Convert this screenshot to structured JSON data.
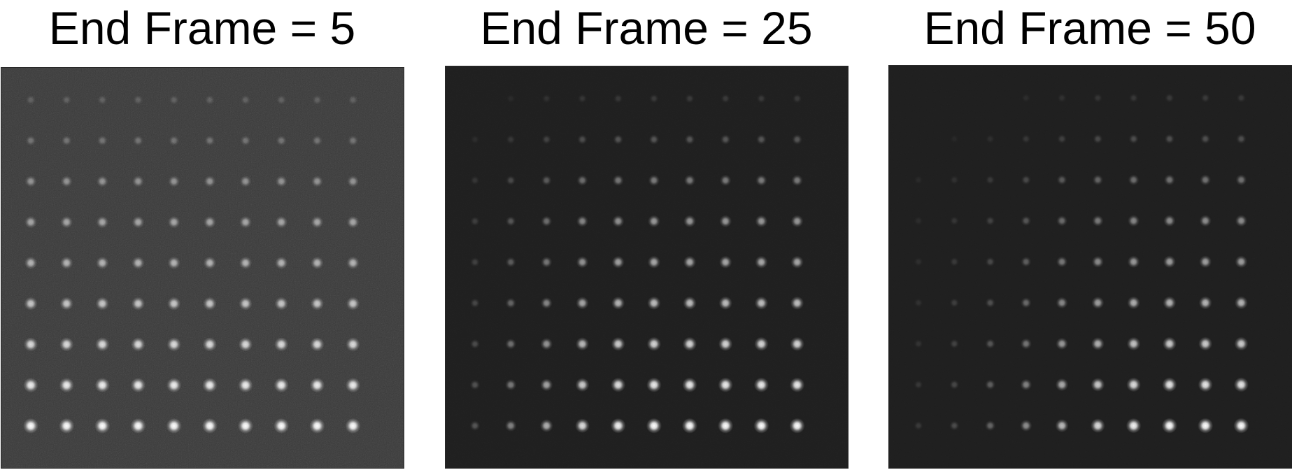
{
  "figure": {
    "panels": [
      {
        "title": "End Frame = 5",
        "background": "#3a3a3a",
        "noise_amount": 0.62,
        "spot_brightness_by_row": [
          0.18,
          0.28,
          0.45,
          0.55,
          0.62,
          0.72,
          0.82,
          0.92,
          1.0
        ],
        "spot_brightness_by_col": [
          1,
          1,
          1,
          1,
          1,
          1,
          1,
          1,
          1,
          1
        ]
      },
      {
        "title": "End Frame = 25",
        "background": "#1e1e1e",
        "noise_amount": 0.28,
        "spot_brightness_by_row": [
          0.12,
          0.25,
          0.42,
          0.55,
          0.62,
          0.72,
          0.82,
          0.92,
          1.0
        ],
        "spot_brightness_by_col": [
          0.25,
          0.45,
          0.65,
          0.85,
          0.95,
          1,
          1,
          1,
          1,
          1
        ]
      },
      {
        "title": "End Frame = 50",
        "background": "#1e1e1e",
        "noise_amount": 0.22,
        "spot_brightness_by_row": [
          0.12,
          0.22,
          0.38,
          0.5,
          0.58,
          0.68,
          0.78,
          0.9,
          1.0
        ],
        "spot_brightness_by_col": [
          0.12,
          0.2,
          0.32,
          0.5,
          0.7,
          0.85,
          0.95,
          1,
          1,
          1
        ]
      }
    ],
    "grid": {
      "rows": 9,
      "cols": 10
    }
  }
}
